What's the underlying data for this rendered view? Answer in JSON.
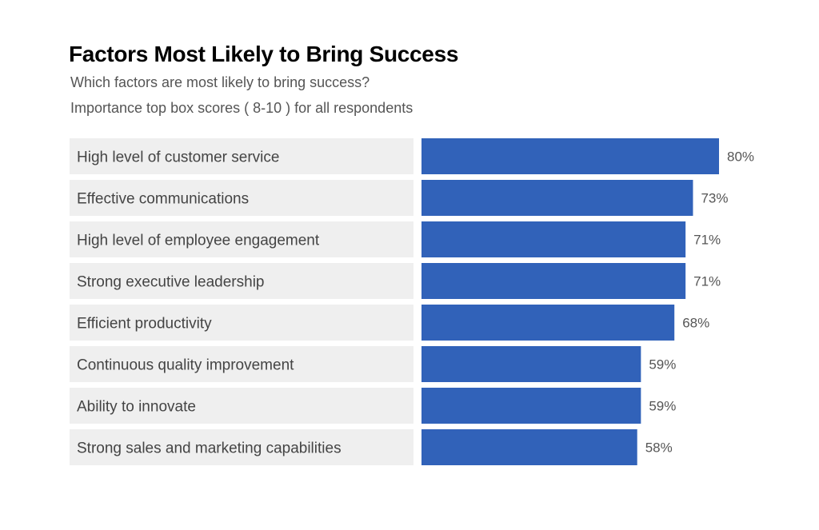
{
  "chart_data": {
    "type": "bar",
    "orientation": "horizontal",
    "title": "Factors Most Likely to Bring Success",
    "subtitle": "Which factors are most likely to bring success?",
    "subtitle2": "Importance top box scores ( 8-10 ) for all respondents",
    "categories": [
      "High level of customer service",
      "Effective communications",
      "High level of employee engagement",
      "Strong executive leadership",
      "Efficient productivity",
      "Continuous quality improvement",
      "Ability to innovate",
      "Strong sales and marketing capabilities"
    ],
    "values": [
      80,
      73,
      71,
      71,
      68,
      59,
      59,
      58
    ],
    "value_labels": [
      "80%",
      "73%",
      "71%",
      "71%",
      "68%",
      "59%",
      "59%",
      "58%"
    ],
    "value_unit": "%",
    "xlim": [
      0,
      100
    ],
    "grid": false,
    "legend": "none",
    "colors": {
      "bar": "#3162b9",
      "label_background": "#efefef",
      "title": "#000000",
      "text": "#555555"
    }
  }
}
